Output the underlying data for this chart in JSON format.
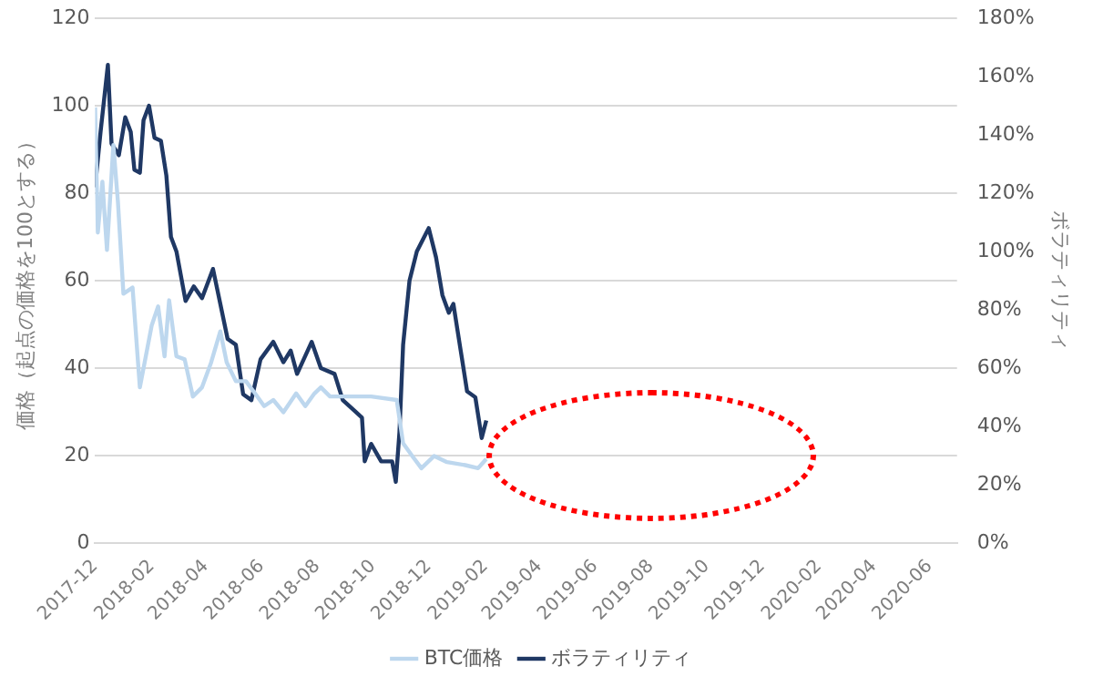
{
  "chart_data": {
    "type": "line",
    "ylabel": "価格（起点の価格を100とする）",
    "y2label": "ボラティリティ",
    "xlim": [
      "2017-12",
      "2020-07"
    ],
    "xticks": [
      "2017-12",
      "2018-02",
      "2018-04",
      "2018-06",
      "2018-08",
      "2018-10",
      "2018-12",
      "2019-02",
      "2019-04",
      "2019-06",
      "2019-08",
      "2019-10",
      "2019-12",
      "2020-02",
      "2020-04",
      "2020-06"
    ],
    "ylim": [
      0,
      120
    ],
    "yticks": [
      0,
      20,
      40,
      60,
      80,
      100,
      120
    ],
    "y2lim": [
      0,
      180
    ],
    "y2ticks": [
      {
        "value": 0,
        "label": "0%"
      },
      {
        "value": 20,
        "label": "20%"
      },
      {
        "value": 40,
        "label": "40%"
      },
      {
        "value": 60,
        "label": "60%"
      },
      {
        "value": 80,
        "label": "80%"
      },
      {
        "value": 100,
        "label": "100%"
      },
      {
        "value": 120,
        "label": "120%"
      },
      {
        "value": 140,
        "label": "140%"
      },
      {
        "value": 160,
        "label": "160%"
      },
      {
        "value": 180,
        "label": "180%"
      }
    ],
    "grid": "y",
    "legend": "bottom",
    "marker": "none",
    "line_style": "solid",
    "series": [
      {
        "name": "BTC価格",
        "color": "#bdd7ee",
        "x": [
          "2017-12-01",
          "2017-12-04",
          "2017-12-09",
          "2017-12-14",
          "2017-12-21",
          "2017-12-26",
          "2018-01-01",
          "2018-01-11",
          "2018-01-19",
          "2018-02-01",
          "2018-02-08",
          "2018-02-15",
          "2018-02-20",
          "2018-02-28",
          "2018-03-09",
          "2018-03-18",
          "2018-03-28",
          "2018-04-07",
          "2018-04-17",
          "2018-04-24",
          "2018-05-04",
          "2018-05-15",
          "2018-05-25",
          "2018-06-04",
          "2018-06-14",
          "2018-06-25",
          "2018-07-09",
          "2018-07-19",
          "2018-07-29",
          "2018-08-05",
          "2018-08-15",
          "2018-09-02",
          "2018-09-29",
          "2018-10-27",
          "2018-11-03",
          "2018-11-13",
          "2018-11-23",
          "2018-12-07",
          "2018-12-21",
          "2019-01-10",
          "2019-01-24",
          "2019-02-02"
        ],
        "values": [
          99.6,
          71,
          82.6,
          67,
          91,
          78,
          57,
          58.4,
          35.6,
          49.8,
          54.1,
          42.7,
          55.5,
          42.7,
          42,
          33.5,
          35.6,
          41.3,
          48.4,
          41.3,
          37,
          37,
          34.2,
          31.3,
          32.7,
          29.9,
          34.2,
          31.3,
          34.2,
          35.6,
          33.5,
          33.5,
          33.5,
          32.7,
          22.8,
          19.9,
          17.1,
          19.9,
          18.5,
          17.8,
          17.1,
          19.2
        ]
      },
      {
        "name": "ボラティリティ",
        "color": "#1f3864",
        "axis": "y2",
        "x": [
          "2017-12-01",
          "2017-12-07",
          "2017-12-15",
          "2017-12-19",
          "2017-12-27",
          "2018-01-03",
          "2018-01-09",
          "2018-01-13",
          "2018-01-19",
          "2018-01-23",
          "2018-01-29",
          "2018-02-04",
          "2018-02-11",
          "2018-02-17",
          "2018-02-22",
          "2018-02-28",
          "2018-03-10",
          "2018-03-19",
          "2018-03-28",
          "2018-04-09",
          "2018-04-17",
          "2018-04-25",
          "2018-05-04",
          "2018-05-12",
          "2018-05-21",
          "2018-05-31",
          "2018-06-14",
          "2018-06-25",
          "2018-07-03",
          "2018-07-10",
          "2018-07-26",
          "2018-08-05",
          "2018-08-20",
          "2018-08-29",
          "2018-09-12",
          "2018-09-19",
          "2018-09-22",
          "2018-09-29",
          "2018-10-10",
          "2018-10-22",
          "2018-10-26",
          "2018-10-30",
          "2018-11-03",
          "2018-11-10",
          "2018-11-18",
          "2018-12-01",
          "2018-12-09",
          "2018-12-16",
          "2018-12-23",
          "2018-12-28",
          "2019-01-05",
          "2019-01-12",
          "2019-01-21",
          "2019-01-28",
          "2019-02-02"
        ],
        "values": [
          122,
          141,
          164,
          137,
          133,
          146,
          141,
          128,
          127,
          145,
          150,
          139,
          138,
          126,
          105,
          100,
          83,
          88,
          84,
          94,
          82,
          70,
          68,
          51,
          49,
          63,
          69,
          62,
          66,
          58,
          69,
          60,
          58,
          49,
          45,
          43,
          28,
          34,
          28,
          28,
          21,
          38,
          68,
          90,
          100,
          108,
          98,
          85,
          79,
          82,
          66,
          52,
          50,
          36,
          42
        ]
      }
    ]
  }
}
